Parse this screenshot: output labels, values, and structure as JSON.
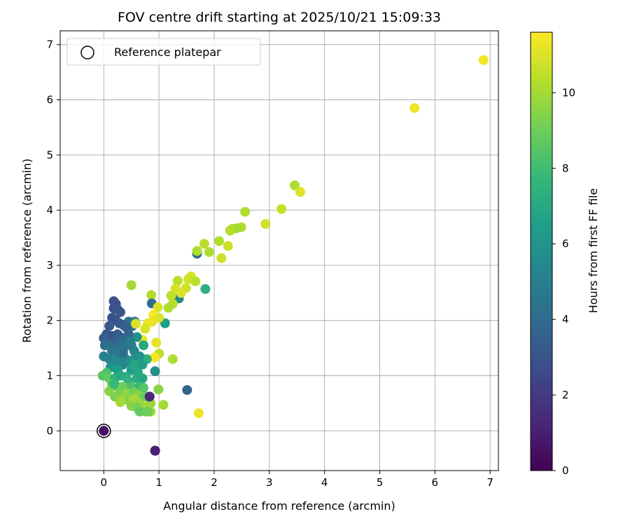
{
  "chart_data": {
    "type": "scatter",
    "title": "FOV centre drift starting at 2025/10/21 15:09:33",
    "xlabel": "Angular distance from reference (arcmin)",
    "ylabel": "Rotation from reference (arcmin)",
    "xlim": [
      -0.79,
      7.15
    ],
    "ylim": [
      -0.72,
      7.25
    ],
    "x_ticks": [
      "0",
      "1",
      "2",
      "3",
      "4",
      "5",
      "6",
      "7"
    ],
    "y_ticks": [
      "0",
      "1",
      "2",
      "3",
      "4",
      "5",
      "6",
      "7"
    ],
    "grid": true,
    "legend": {
      "placement": "top-left",
      "label": "Reference platepar"
    },
    "reference_point": [
      0,
      0,
      0.5
    ],
    "colorbar": {
      "label": "Hours from first FF file",
      "range": [
        0,
        11.6
      ],
      "ticks": [
        "0",
        "2",
        "4",
        "6",
        "8",
        "10"
      ]
    },
    "colormap": [
      "#440154",
      "#482878",
      "#3e4989",
      "#31688e",
      "#26828e",
      "#1f9e89",
      "#35b779",
      "#6ece58",
      "#b5de2b",
      "#fde725"
    ],
    "points_columns": [
      "x_arcmin",
      "y_arcmin",
      "hours"
    ],
    "points": [
      [
        0,
        0,
        0.5
      ],
      [
        0.93,
        -0.36,
        1
      ],
      [
        0.83,
        0.62,
        1.3
      ],
      [
        1.51,
        0.74,
        3.8
      ],
      [
        1.72,
        0.32,
        11.3
      ],
      [
        6.88,
        6.72,
        11.4
      ],
      [
        5.63,
        5.85,
        11.3
      ],
      [
        3.46,
        4.45,
        10.2
      ],
      [
        3.56,
        4.33,
        11
      ],
      [
        3.22,
        4.02,
        10.6
      ],
      [
        2.93,
        3.75,
        10.8
      ],
      [
        2.56,
        3.97,
        10.2
      ],
      [
        2.49,
        3.69,
        10.2
      ],
      [
        2.4,
        3.67,
        10
      ],
      [
        2.33,
        3.66,
        10.1
      ],
      [
        2.29,
        3.63,
        10.3
      ],
      [
        2.09,
        3.44,
        10.2
      ],
      [
        2.25,
        3.35,
        10.7
      ],
      [
        2.13,
        3.13,
        10.7
      ],
      [
        1.82,
        3.39,
        10.4
      ],
      [
        1.91,
        3.24,
        10.2
      ],
      [
        1.69,
        3.21,
        3.9
      ],
      [
        1.69,
        3.26,
        10.2
      ],
      [
        1.84,
        2.57,
        7.4
      ],
      [
        1.58,
        2.8,
        11
      ],
      [
        1.53,
        2.75,
        10.8
      ],
      [
        1.66,
        2.71,
        10.4
      ],
      [
        1.34,
        2.72,
        10.4
      ],
      [
        1.3,
        2.58,
        10.9
      ],
      [
        1.49,
        2.59,
        10.8
      ],
      [
        1.36,
        2.4,
        5.5
      ],
      [
        1.4,
        2.5,
        11
      ],
      [
        1.22,
        2.45,
        10.5
      ],
      [
        1.25,
        2.3,
        10.4
      ],
      [
        1.17,
        2.23,
        10.2
      ],
      [
        0.5,
        2.64,
        10
      ],
      [
        0.86,
        2.46,
        10.3
      ],
      [
        0.87,
        2.31,
        4.0
      ],
      [
        0.98,
        2.24,
        11
      ],
      [
        1.11,
        1.95,
        6.5
      ],
      [
        0.9,
        2.1,
        11.5
      ],
      [
        1.0,
        2.05,
        11
      ],
      [
        0.88,
        1.98,
        11.2
      ],
      [
        0.8,
        1.95,
        11.3
      ],
      [
        0.75,
        1.85,
        11
      ],
      [
        0.7,
        1.65,
        11.3
      ],
      [
        0.95,
        1.6,
        11.2
      ],
      [
        1.0,
        1.4,
        10.5
      ],
      [
        0.92,
        1.33,
        11.5
      ],
      [
        1.25,
        1.3,
        10.2
      ],
      [
        0.93,
        1.08,
        5.8
      ],
      [
        0.99,
        0.75,
        9.5
      ],
      [
        1.08,
        0.47,
        10
      ],
      [
        0.85,
        0.35,
        10
      ],
      [
        0.56,
        1.98,
        4.5
      ],
      [
        0.52,
        1.9,
        4.2
      ],
      [
        0.45,
        1.98,
        4.6
      ],
      [
        0.58,
        1.94,
        11
      ],
      [
        0.6,
        1.7,
        5.9
      ],
      [
        0.72,
        1.55,
        7
      ],
      [
        0.78,
        1.3,
        7.5
      ],
      [
        0.7,
        1.2,
        6.5
      ],
      [
        0.65,
        1.35,
        6
      ],
      [
        0.55,
        1.45,
        5.5
      ],
      [
        0.5,
        1.55,
        4.8
      ],
      [
        0.18,
        2.35,
        3
      ],
      [
        0.22,
        2.3,
        2.8
      ],
      [
        0.18,
        2.22,
        2.9
      ],
      [
        0.25,
        2.2,
        3
      ],
      [
        0.3,
        2.15,
        3.1
      ],
      [
        0.15,
        2.05,
        3
      ],
      [
        0.22,
        2.0,
        2.9
      ],
      [
        0.28,
        1.95,
        3.2
      ],
      [
        0.35,
        1.92,
        3.3
      ],
      [
        0.4,
        1.88,
        3.5
      ],
      [
        0.1,
        1.9,
        3.3
      ],
      [
        0.05,
        1.75,
        3.1
      ],
      [
        0.0,
        1.68,
        3.4
      ],
      [
        0.08,
        1.7,
        3.6
      ],
      [
        0.15,
        1.72,
        3
      ],
      [
        0.25,
        1.75,
        3.4
      ],
      [
        0.3,
        1.7,
        3.6
      ],
      [
        0.38,
        1.65,
        4
      ],
      [
        0.45,
        1.75,
        3.8
      ],
      [
        0.2,
        1.6,
        3.8
      ],
      [
        0.1,
        1.55,
        4
      ],
      [
        0.02,
        1.55,
        4.2
      ],
      [
        0.28,
        1.55,
        4.2
      ],
      [
        0.35,
        1.5,
        4.4
      ],
      [
        0.42,
        1.55,
        4.6
      ],
      [
        0.15,
        1.45,
        4.5
      ],
      [
        0.25,
        1.4,
        4.8
      ],
      [
        0.0,
        1.35,
        5
      ],
      [
        0.1,
        1.3,
        5.2
      ],
      [
        0.3,
        1.35,
        5
      ],
      [
        0.4,
        1.3,
        5.3
      ],
      [
        0.2,
        1.25,
        5.5
      ],
      [
        0.35,
        1.2,
        5.5
      ],
      [
        0.48,
        1.25,
        5.7
      ],
      [
        0.55,
        1.3,
        6
      ],
      [
        0.5,
        1.1,
        6.3
      ],
      [
        0.6,
        1.15,
        6.5
      ],
      [
        0.12,
        1.15,
        6
      ],
      [
        0.25,
        1.1,
        6.5
      ],
      [
        0.05,
        1.05,
        8.2
      ],
      [
        -0.02,
        1.0,
        8.5
      ],
      [
        0.1,
        0.95,
        8.8
      ],
      [
        0.2,
        0.95,
        7.5
      ],
      [
        0.3,
        1.0,
        7
      ],
      [
        0.4,
        0.98,
        7.2
      ],
      [
        0.45,
        0.9,
        7.5
      ],
      [
        0.6,
        0.95,
        7.2
      ],
      [
        0.7,
        0.95,
        6.8
      ],
      [
        0.15,
        0.85,
        9
      ],
      [
        0.25,
        0.8,
        8.5
      ],
      [
        0.35,
        0.8,
        9
      ],
      [
        0.5,
        0.8,
        8.3
      ],
      [
        0.65,
        0.8,
        7.8
      ],
      [
        0.72,
        0.78,
        8.5
      ],
      [
        0.1,
        0.72,
        9.5
      ],
      [
        0.3,
        0.7,
        9.2
      ],
      [
        0.42,
        0.68,
        9.6
      ],
      [
        0.55,
        0.7,
        9
      ],
      [
        0.62,
        0.65,
        9.4
      ],
      [
        0.75,
        0.62,
        8.8
      ],
      [
        0.2,
        0.62,
        9.3
      ],
      [
        0.35,
        0.58,
        9.7
      ],
      [
        0.45,
        0.55,
        9.5
      ],
      [
        0.55,
        0.58,
        10
      ],
      [
        0.65,
        0.5,
        9.8
      ],
      [
        0.3,
        0.52,
        10
      ],
      [
        0.5,
        0.45,
        9.5
      ],
      [
        0.6,
        0.42,
        9.2
      ],
      [
        0.7,
        0.4,
        9.6
      ],
      [
        0.75,
        0.35,
        9.3
      ],
      [
        0.8,
        0.45,
        10
      ],
      [
        0.85,
        0.5,
        9.8
      ],
      [
        0.65,
        0.35,
        8.8
      ],
      [
        0.8,
        0.35,
        9
      ],
      [
        0.55,
        1.2,
        6.8
      ],
      [
        0.62,
        1.05,
        6.9
      ],
      [
        0.18,
        0.85,
        7.8
      ],
      [
        0.35,
        1.42,
        4.2
      ],
      [
        0.48,
        1.62,
        5
      ],
      [
        0.83,
        0.62,
        1.3
      ],
      [
        0.93,
        -0.36,
        1
      ]
    ]
  }
}
